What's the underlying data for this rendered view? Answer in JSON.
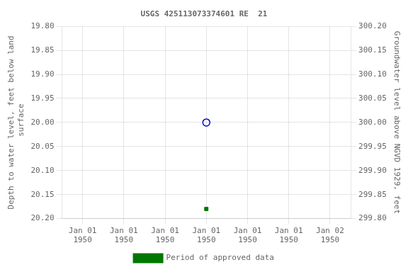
{
  "chart_data": {
    "type": "scatter",
    "title": "USGS 425113073374601 RE  21",
    "ylabel": "Depth to water level, feet below land\n surface",
    "y2label": "Groundwater level above NGVD 1929, feet",
    "categories": [
      "Jan 01\n1950",
      "Jan 01\n1950",
      "Jan 01\n1950",
      "Jan 01\n1950",
      "Jan 01\n1950",
      "Jan 01\n1950",
      "Jan 02\n1950"
    ],
    "series": [
      {
        "color": "#0000cc",
        "marker": "open_circle",
        "values": [
          null,
          null,
          null,
          20.0,
          null,
          null,
          null
        ]
      },
      {
        "name": "Period of approved data",
        "color": "#007700",
        "marker": "square",
        "values": [
          null,
          null,
          null,
          20.18,
          null,
          null,
          null
        ]
      }
    ],
    "ylim": [
      20.2,
      19.8
    ],
    "yticks": [
      {
        "value": 19.8,
        "label": "19.80"
      },
      {
        "value": 19.85,
        "label": "19.85"
      },
      {
        "value": 19.9,
        "label": "19.90"
      },
      {
        "value": 19.95,
        "label": "19.95"
      },
      {
        "value": 20.0,
        "label": "20.00"
      },
      {
        "value": 20.05,
        "label": "20.05"
      },
      {
        "value": 20.1,
        "label": "20.10"
      },
      {
        "value": 20.15,
        "label": "20.15"
      },
      {
        "value": 20.2,
        "label": "20.20"
      }
    ],
    "y2lim": [
      299.8,
      300.2
    ],
    "y2ticks": [
      {
        "value": 300.2,
        "label": "300.20"
      },
      {
        "value": 300.15,
        "label": "300.15"
      },
      {
        "value": 300.1,
        "label": "300.10"
      },
      {
        "value": 300.05,
        "label": "300.05"
      },
      {
        "value": 300.0,
        "label": "300.00"
      },
      {
        "value": 299.95,
        "label": "299.95"
      },
      {
        "value": 299.9,
        "label": "299.90"
      },
      {
        "value": 299.85,
        "label": "299.85"
      },
      {
        "value": 299.8,
        "label": "299.80"
      }
    ],
    "grid": true,
    "legend": "bottom"
  }
}
